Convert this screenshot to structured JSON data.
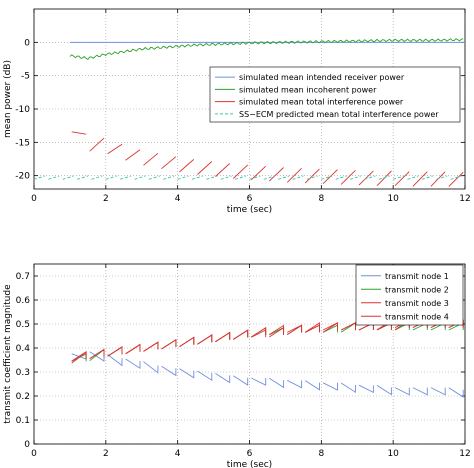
{
  "chart_data": [
    {
      "type": "line",
      "xlabel": "time (sec)",
      "ylabel": "mean power (dB)",
      "xlim": [
        0,
        12
      ],
      "ylim": [
        -22,
        5
      ],
      "xticks": [
        0,
        2,
        4,
        6,
        8,
        10,
        12
      ],
      "yticks": [
        0,
        -5,
        -10,
        -15,
        -20
      ],
      "grid": true,
      "legend_position": "right, below top",
      "series": [
        {
          "name": "simulated mean intended receiver power",
          "color": "#6f8fe0",
          "style": "solid",
          "x": [
            1,
            12
          ],
          "y": [
            0,
            0
          ]
        },
        {
          "name": "simulated mean incoherent power",
          "color": "#2ca02c",
          "style": "solid",
          "x": [
            1.0,
            1.5,
            2.0,
            2.5,
            3.0,
            3.5,
            4.0,
            4.5,
            5.0,
            5.5,
            6.0,
            7.0,
            8.0,
            9.0,
            10.0,
            11.0,
            12.0
          ],
          "y": [
            -2.0,
            -2.4,
            -1.8,
            -1.4,
            -1.0,
            -0.8,
            -0.6,
            -0.4,
            -0.3,
            -0.2,
            -0.1,
            0.0,
            0.1,
            0.2,
            0.3,
            0.3,
            0.4
          ]
        },
        {
          "name": "simulated mean total interference power",
          "color": "#e03030",
          "style": "solid",
          "x": [
            1.0,
            1.5,
            2.0,
            2.5,
            3.0,
            3.5,
            4.0,
            4.5,
            5.0,
            5.5,
            6.0,
            6.5,
            7.0,
            7.5,
            8.0,
            8.5,
            9.0,
            9.5,
            10.0,
            10.5,
            11.0,
            11.5,
            12.0
          ],
          "y": [
            -12.0,
            -15.2,
            -15.5,
            -16.5,
            -17.3,
            -17.8,
            -18.3,
            -18.7,
            -19.0,
            -19.3,
            -19.5,
            -19.7,
            -19.9,
            -20.0,
            -20.1,
            -20.2,
            -20.3,
            -20.4,
            -20.4,
            -20.5,
            -20.5,
            -20.5,
            -20.6
          ]
        },
        {
          "name": "SS−ECM predicted mean total interference power",
          "color": "#40c8b0",
          "style": "dashed",
          "x": [
            0,
            12
          ],
          "y": [
            -20.3,
            -20.3
          ]
        }
      ]
    },
    {
      "type": "line",
      "xlabel": "time (sec)",
      "ylabel": "transmit coefficient magnitude",
      "xlim": [
        0,
        12
      ],
      "ylim": [
        0,
        0.75
      ],
      "xticks": [
        0,
        2,
        4,
        6,
        8,
        10,
        12
      ],
      "yticks": [
        0,
        0.1,
        0.2,
        0.3,
        0.4,
        0.5,
        0.6,
        0.7
      ],
      "grid": true,
      "legend_position": "top-right",
      "series": [
        {
          "name": "transmit node 1",
          "color": "#6f8fe0",
          "x": [
            1.0,
            1.5,
            2.0,
            2.5,
            3.0,
            3.5,
            4.0,
            4.5,
            5.0,
            5.5,
            6.0,
            6.5,
            7.0,
            7.5,
            8.0,
            8.5,
            9.0,
            9.5,
            10.0,
            10.5,
            11.0,
            11.5,
            12.0
          ],
          "y": [
            0.36,
            0.37,
            0.36,
            0.34,
            0.33,
            0.31,
            0.3,
            0.29,
            0.28,
            0.27,
            0.26,
            0.26,
            0.25,
            0.25,
            0.24,
            0.24,
            0.23,
            0.23,
            0.22,
            0.22,
            0.22,
            0.22,
            0.21
          ]
        },
        {
          "name": "transmit node 2",
          "color": "#2ca02c",
          "x": [
            1.0,
            1.5,
            2.0,
            2.5,
            3.0,
            3.5,
            4.0,
            4.5,
            5.0,
            5.5,
            6.0,
            6.5,
            7.0,
            7.5,
            8.0,
            8.5,
            9.0,
            9.5,
            10.0,
            10.5,
            11.0,
            11.5,
            12.0
          ],
          "y": [
            0.36,
            0.36,
            0.38,
            0.39,
            0.4,
            0.41,
            0.42,
            0.43,
            0.44,
            0.45,
            0.46,
            0.47,
            0.47,
            0.48,
            0.48,
            0.48,
            0.49,
            0.49,
            0.49,
            0.49,
            0.49,
            0.49,
            0.49
          ]
        },
        {
          "name": "transmit node 3",
          "color": "#e03030",
          "x": [
            1.0,
            1.5,
            2.0,
            2.5,
            3.0,
            3.5,
            4.0,
            4.5,
            5.0,
            5.5,
            6.0,
            6.5,
            7.0,
            7.5,
            8.0,
            8.5,
            9.0,
            9.5,
            10.0,
            10.5,
            11.0,
            11.5,
            12.0
          ],
          "y": [
            0.36,
            0.37,
            0.38,
            0.39,
            0.4,
            0.41,
            0.42,
            0.43,
            0.44,
            0.45,
            0.46,
            0.47,
            0.48,
            0.48,
            0.49,
            0.49,
            0.49,
            0.49,
            0.5,
            0.5,
            0.5,
            0.5,
            0.5
          ]
        },
        {
          "name": "transmit node 4",
          "color": "#e03030",
          "x": [
            1.0,
            1.5,
            2.0,
            2.5,
            3.0,
            3.5,
            4.0,
            4.5,
            5.0,
            5.5,
            6.0,
            6.5,
            7.0,
            7.5,
            8.0,
            8.5,
            9.0,
            9.5,
            10.0,
            10.5,
            11.0,
            11.5,
            12.0
          ],
          "y": [
            0.35,
            0.37,
            0.38,
            0.39,
            0.4,
            0.41,
            0.42,
            0.43,
            0.44,
            0.45,
            0.46,
            0.46,
            0.47,
            0.48,
            0.48,
            0.49,
            0.49,
            0.49,
            0.49,
            0.5,
            0.5,
            0.5,
            0.5
          ]
        }
      ]
    }
  ]
}
